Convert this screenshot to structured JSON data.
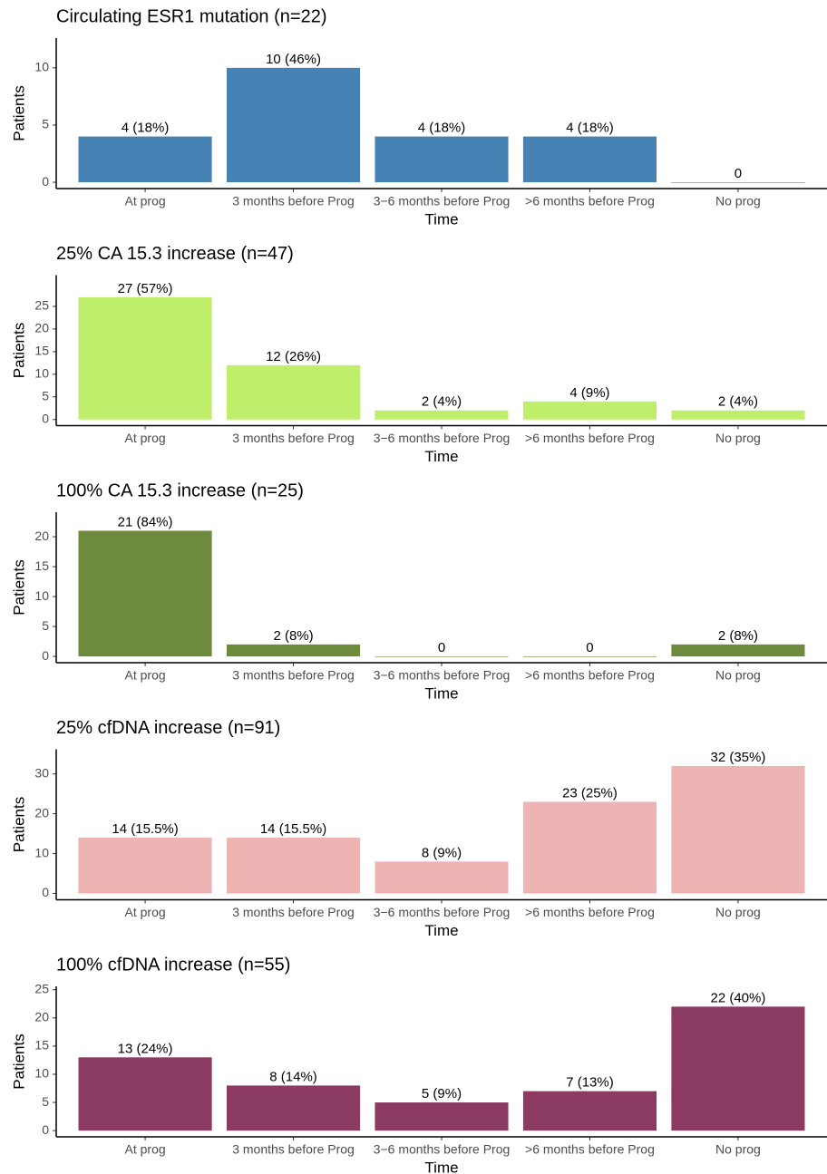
{
  "chart_data": [
    {
      "type": "bar",
      "title": "Circulating ESR1 mutation (n=22)",
      "x_label": "Time",
      "y_label": "Patients",
      "categories": [
        "At prog",
        "3 months before Prog",
        "3−6 months before Prog",
        ">6 months before Prog",
        "No prog"
      ],
      "values": [
        4,
        10,
        4,
        4,
        0
      ],
      "value_labels": [
        "4 (18%)",
        "10 (46%)",
        "4 (18%)",
        "4 (18%)",
        "0"
      ],
      "color": "#4682b4",
      "ylim": [
        -0.55,
        12.6
      ],
      "yticks": [
        0,
        5,
        10
      ]
    },
    {
      "type": "bar",
      "title": "25% CA 15.3 increase (n=47)",
      "x_label": "Time",
      "y_label": "Patients",
      "categories": [
        "At prog",
        "3 months before Prog",
        "3−6 months before Prog",
        ">6 months before Prog",
        "No prog"
      ],
      "values": [
        27,
        12,
        2,
        4,
        2
      ],
      "value_labels": [
        "27 (57%)",
        "12 (26%)",
        "2 (4%)",
        "4 (9%)",
        "2 (4%)"
      ],
      "color": "#bfee6a",
      "ylim": [
        -1.35,
        31.9
      ],
      "yticks": [
        0,
        5,
        10,
        15,
        20,
        25
      ]
    },
    {
      "type": "bar",
      "title": "100% CA 15.3 increase (n=25)",
      "x_label": "Time",
      "y_label": "Patients",
      "categories": [
        "At prog",
        "3 months before Prog",
        "3−6 months before Prog",
        ">6 months before Prog",
        "No prog"
      ],
      "values": [
        21,
        2,
        0,
        0,
        2
      ],
      "value_labels": [
        "21 (84%)",
        "2 (8%)",
        "0",
        "0",
        "2 (8%)"
      ],
      "color": "#6e8b3d",
      "ylim": [
        -1.05,
        24.1
      ],
      "yticks": [
        0,
        5,
        10,
        15,
        20
      ]
    },
    {
      "type": "bar",
      "title": "25% cfDNA increase (n=91)",
      "x_label": "Time",
      "y_label": "Patients",
      "categories": [
        "At prog",
        "3 months before Prog",
        "3−6 months before Prog",
        ">6 months before Prog",
        "No prog"
      ],
      "values": [
        14,
        14,
        8,
        23,
        32
      ],
      "value_labels": [
        "14 (15.5%)",
        "14 (15.5%)",
        "8 (9%)",
        "23 (25%)",
        "32 (35%)"
      ],
      "color": "#eeb4b4",
      "ylim": [
        -1.6,
        36.2
      ],
      "yticks": [
        0,
        10,
        20,
        30
      ]
    },
    {
      "type": "bar",
      "title": "100% cfDNA increase (n=55)",
      "x_label": "Time",
      "y_label": "Patients",
      "categories": [
        "At prog",
        "3 months before Prog",
        "3−6 months before Prog",
        ">6 months before Prog",
        "No prog"
      ],
      "values": [
        13,
        8,
        5,
        7,
        22
      ],
      "value_labels": [
        "13 (24%)",
        "8 (14%)",
        "5 (9%)",
        "7 (13%)",
        "22 (40%)"
      ],
      "color": "#8b3a62",
      "ylim": [
        -1.1,
        25.6
      ],
      "yticks": [
        0,
        5,
        10,
        15,
        20,
        25
      ]
    }
  ]
}
